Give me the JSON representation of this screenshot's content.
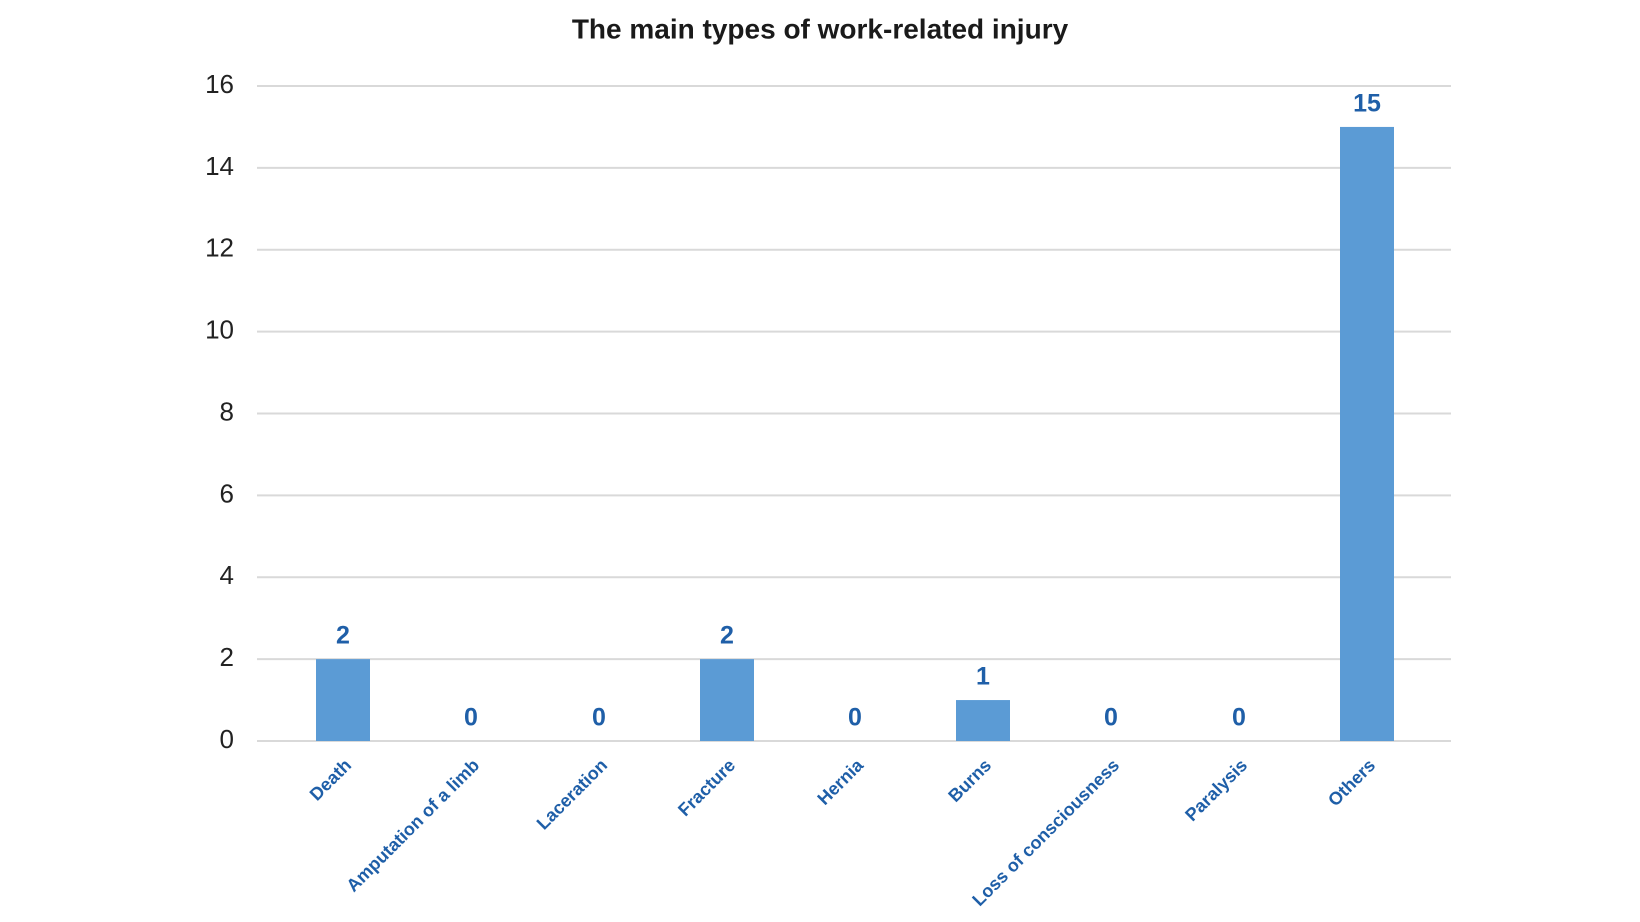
{
  "chart_data": {
    "type": "bar",
    "title": "The main types of work-related injury",
    "categories": [
      "Death",
      "Amputation of a limb",
      "Laceration",
      "Fracture",
      "Hernia",
      "Burns",
      "Loss of consciousness",
      "Paralysis",
      "Others"
    ],
    "values": [
      2,
      0,
      0,
      2,
      0,
      1,
      0,
      0,
      15
    ],
    "color": "#5b9bd5",
    "ylim": [
      0,
      16
    ],
    "yticks": [
      0,
      2,
      4,
      6,
      8,
      10,
      12,
      14,
      16
    ],
    "grid": true
  }
}
